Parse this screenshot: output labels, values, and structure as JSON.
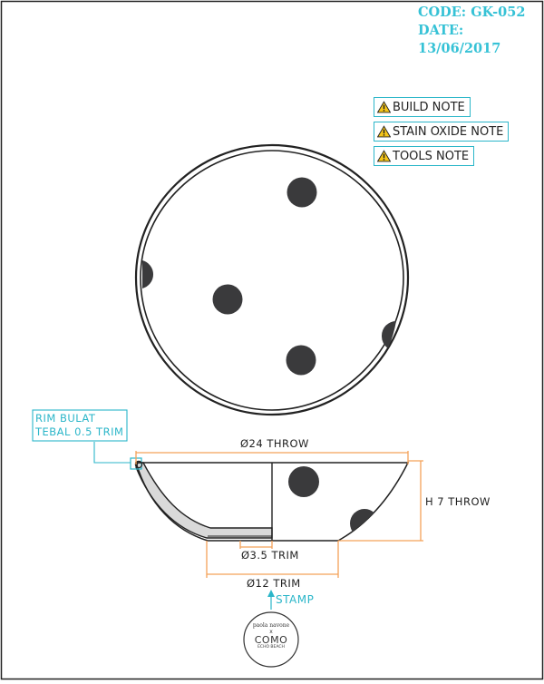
{
  "header": {
    "code": "CODE: GK-052",
    "date": "DATE: 13/06/2017"
  },
  "notes": [
    {
      "label": "BUILD NOTE",
      "icon": "warning-icon"
    },
    {
      "label": "STAIN OXIDE NOTE",
      "icon": "warning-icon"
    },
    {
      "label": "TOOLS NOTE",
      "icon": "warning-icon"
    }
  ],
  "annotations": {
    "rim_line1": "RIM BULAT",
    "rim_line2": "TEBAL 0.5 TRIM",
    "stamp": "STAMP"
  },
  "dimensions": {
    "diameter_top": "Ø24 THROW",
    "height": "H 7 THROW",
    "foot_inner": "Ø3.5 TRIM",
    "foot_outer": "Ø12 TRIM"
  },
  "logo": {
    "line1": "paola navone",
    "line2": "x",
    "line3": "COMO",
    "line4": "ECHO BEACH"
  },
  "colors": {
    "accent": "#2bb6c9",
    "dimension": "#f4a259",
    "title": "#36c2d6",
    "dot": "#3a3a3c",
    "glaze": "#d9d9d9",
    "line": "#222222",
    "warning": "#f5c518"
  }
}
